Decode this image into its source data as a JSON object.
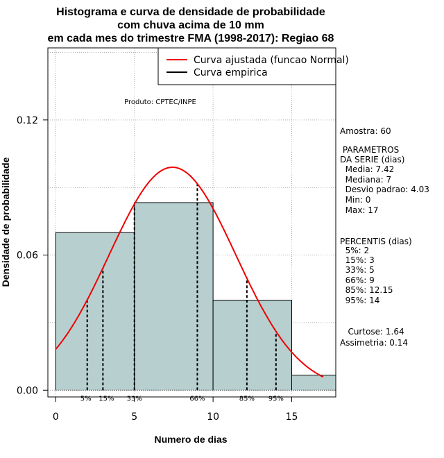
{
  "title_lines": [
    "Histograma e curva de densidade de probabilidade",
    "com chuva acima de 10 mm",
    "em cada mes do trimestre FMA (1998-2017): Regiao 68"
  ],
  "produto": "Produto: CPTEC/INPE",
  "legend": {
    "fitted": "Curva ajustada (funcao Normal)",
    "empirical": "Curva empirica"
  },
  "stats": {
    "amostra": "Amostra: 60",
    "param_title_1": " PARAMETROS",
    "param_title_2": "DA SERIE (dias)",
    "media": "  Media: 7.42",
    "mediana": "  Mediana: 7",
    "desvio": "  Desvio padrao: 4.03",
    "min": "  Min: 0",
    "max": "  Max: 17",
    "perc_title": "PERCENTIS (dias)",
    "p5": "  5%: 2",
    "p15": "  15%: 3",
    "p33": "  33%: 5",
    "p66": "  66%: 9",
    "p85": "  85%: 12.15",
    "p95": "  95%: 14",
    "curtose": "   Curtose: 1.64",
    "assimetria": "Assimetria: 0.14"
  },
  "chart_data": {
    "type": "bar",
    "xlabel": "Numero de dias",
    "ylabel": "Densidade de probabilidade",
    "xlim": [
      -0.5,
      17.8
    ],
    "ylim": [
      -0.003,
      0.152
    ],
    "xticks": [
      0,
      5,
      10,
      15
    ],
    "yticks": [
      0.0,
      0.06,
      0.12
    ],
    "ytick_labels": [
      "0.00",
      "0.06",
      "0.12"
    ],
    "grid": true,
    "hist_fill": "#b8cfcf",
    "fit_color": "#ee0000",
    "bins": [
      {
        "x0": 0,
        "x1": 5,
        "density": 0.07
      },
      {
        "x0": 5,
        "x1": 10,
        "density": 0.0833
      },
      {
        "x0": 10,
        "x1": 15,
        "density": 0.04
      },
      {
        "x0": 15,
        "x1": 17.8,
        "density": 0.0067
      }
    ],
    "normal_fit": {
      "mean": 7.42,
      "sd": 4.03,
      "x_from": 0,
      "x_to": 17
    },
    "percentiles": [
      {
        "label": "5%",
        "value": 2
      },
      {
        "label": "15%",
        "value": 3
      },
      {
        "label": "33%",
        "value": 5
      },
      {
        "label": "66%",
        "value": 9
      },
      {
        "label": "85%",
        "value": 12.15
      },
      {
        "label": "95%",
        "value": 14
      }
    ]
  }
}
